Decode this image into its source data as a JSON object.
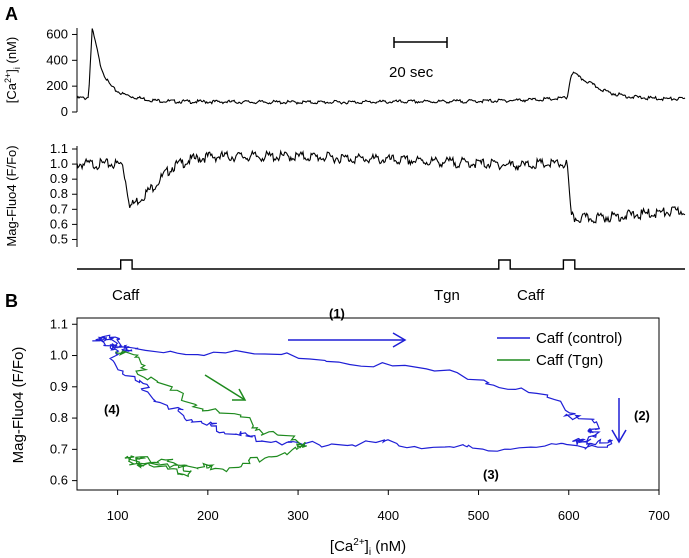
{
  "panel_labels": [
    "A",
    "B"
  ],
  "colors": {
    "control": "#1f1fd6",
    "tgn": "#1e8a1e",
    "trace": "#000000"
  },
  "chart_data": [
    {
      "type": "line",
      "panel": "A",
      "ylabel_main": "[Ca",
      "ylabel_sup": "2+",
      "ylabel_tail": "]",
      "ylabel_sub": "i",
      "ylabel_unit": " (nM)",
      "ylim": [
        0,
        650
      ],
      "yticks": [
        "0",
        "200",
        "400",
        "600"
      ],
      "scale_bar_label": "20 sec",
      "x_seconds": [
        0,
        1,
        2,
        3,
        4,
        5,
        6,
        7,
        8,
        9,
        10,
        12,
        15,
        20,
        25,
        30,
        40,
        50,
        60,
        70,
        80,
        90,
        100,
        110,
        120,
        125,
        129,
        130,
        131,
        132,
        134,
        137,
        140,
        145,
        150,
        155,
        160
      ],
      "values": [
        105,
        110,
        105,
        115,
        640,
        520,
        380,
        300,
        240,
        200,
        170,
        140,
        115,
        90,
        82,
        80,
        78,
        76,
        75,
        76,
        78,
        80,
        82,
        86,
        95,
        100,
        110,
        290,
        300,
        270,
        240,
        190,
        150,
        120,
        108,
        102,
        100
      ]
    },
    {
      "type": "line",
      "panel": "A",
      "ylabel": "Mag-Fluo4 (F/Fo)",
      "ylim": [
        0.45,
        1.12
      ],
      "yticks": [
        "0.5",
        "0.6",
        "0.7",
        "0.8",
        "0.9",
        "1.0",
        "1.1"
      ],
      "x_seconds": [
        0,
        2,
        5,
        10,
        12,
        14,
        17,
        20,
        25,
        30,
        35,
        40,
        45,
        50,
        60,
        70,
        80,
        90,
        100,
        110,
        118,
        120,
        125,
        129,
        130,
        131,
        135,
        140,
        145,
        150,
        155,
        160
      ],
      "values": [
        1.0,
        1.0,
        1.0,
        1.0,
        1.0,
        0.72,
        0.78,
        0.85,
        0.98,
        1.03,
        1.05,
        1.05,
        1.05,
        1.05,
        1.05,
        1.04,
        1.03,
        1.02,
        1.01,
        1.0,
        0.99,
        1.0,
        1.0,
        1.0,
        0.65,
        0.64,
        0.64,
        0.65,
        0.66,
        0.67,
        0.68,
        0.69
      ]
    },
    {
      "type": "step",
      "panel": "A",
      "events": [
        "Caff",
        "Tgn",
        "Caff"
      ],
      "pulse_seconds": [
        [
          11.5,
          14.5
        ],
        [
          111,
          114
        ],
        [
          128,
          131
        ]
      ]
    },
    {
      "type": "line",
      "panel": "B",
      "xlabel_main": "[Ca",
      "xlabel_sup": "2+",
      "xlabel_tail": "]",
      "xlabel_sub": "i",
      "xlabel_unit": " (nM)",
      "ylabel": "Mag-Fluo4 (F/Fo)",
      "xlim": [
        55,
        700
      ],
      "ylim": [
        0.57,
        1.12
      ],
      "xticks": [
        "100",
        "200",
        "300",
        "400",
        "500",
        "600",
        "700"
      ],
      "yticks": [
        "0.6",
        "0.7",
        "0.8",
        "0.9",
        "1.0",
        "1.1"
      ],
      "series": [
        {
          "name": "Caff (control)",
          "x": [
            72,
            85,
            95,
            100,
            105,
            110,
            120,
            200,
            300,
            400,
            500,
            560,
            600,
            620,
            630,
            625,
            615,
            610,
            630,
            645,
            620,
            560,
            500,
            450,
            400,
            350,
            300,
            270,
            240,
            220,
            200,
            180,
            160,
            140,
            120,
            100,
            90,
            85,
            95,
            110
          ],
          "y": [
            1.04,
            1.06,
            1.05,
            1.03,
            1.02,
            1.02,
            1.02,
            1.01,
            1.0,
            0.97,
            0.93,
            0.88,
            0.82,
            0.79,
            0.77,
            0.74,
            0.73,
            0.72,
            0.72,
            0.72,
            0.71,
            0.71,
            0.7,
            0.71,
            0.72,
            0.72,
            0.71,
            0.73,
            0.74,
            0.76,
            0.78,
            0.8,
            0.83,
            0.87,
            0.92,
            0.98,
            1.03,
            1.05,
            1.04,
            1.02
          ]
        },
        {
          "name": "Caff (Tgn)",
          "x": [
            105,
            115,
            130,
            160,
            200,
            240,
            270,
            300,
            310,
            280,
            250,
            220,
            200,
            180,
            150,
            120,
            110,
            130,
            160,
            185,
            160,
            130,
            115
          ],
          "y": [
            1.02,
            1.0,
            0.95,
            0.88,
            0.83,
            0.79,
            0.75,
            0.72,
            0.71,
            0.69,
            0.66,
            0.64,
            0.64,
            0.65,
            0.66,
            0.66,
            0.67,
            0.65,
            0.63,
            0.62,
            0.65,
            0.67,
            0.66
          ]
        }
      ],
      "annotations": [
        "(1)",
        "(2)",
        "(3)",
        "(4)"
      ]
    }
  ]
}
